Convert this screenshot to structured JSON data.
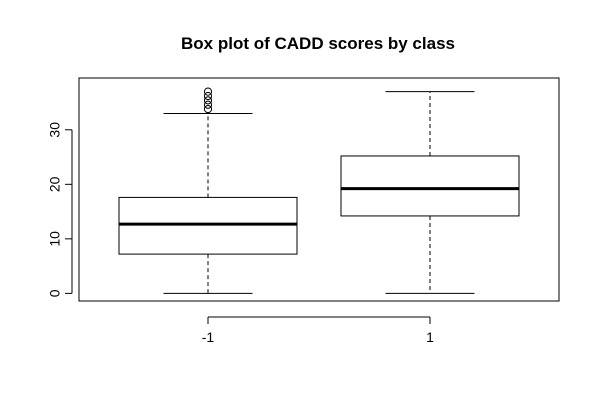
{
  "chart_data": {
    "type": "boxplot",
    "title": "Box plot of CADD scores by class",
    "xlabel": "",
    "ylabel": "",
    "ylim": [
      -1.4,
      39.5
    ],
    "yticks": [
      0,
      10,
      20,
      30
    ],
    "categories": [
      "-1",
      "1"
    ],
    "boxes": [
      {
        "name": "-1",
        "min": 0,
        "q1": 7.2,
        "median": 12.7,
        "q3": 17.6,
        "max": 33.0,
        "outliers": [
          33.8,
          34.6,
          35.4,
          36.2,
          37.0
        ]
      },
      {
        "name": "1",
        "min": 0,
        "q1": 14.2,
        "median": 19.2,
        "q3": 25.2,
        "max": 37.0,
        "outliers": []
      }
    ]
  }
}
